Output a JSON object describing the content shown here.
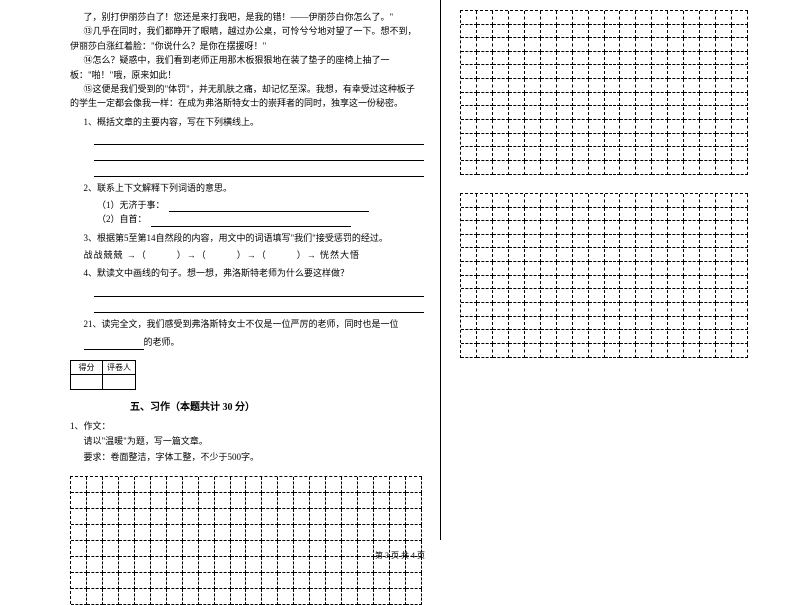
{
  "passage": {
    "p1": "了，别打伊丽莎白了！您还是来打我吧，是我的错！——伊丽莎白你怎么了。\"",
    "p2": "⑬几乎在同时，我们都睁开了眼睛，越过办公桌，可怜兮兮地对望了一下。想不到，伊丽莎白涨红着脸：\"你说什么？是你在摆援呀！\"",
    "p3": "⑭怎么？疑惑中，我们看到老师正用那木板狠狠地在装了垫子的座椅上抽了一板：\"啪！\"哦，原来如此！",
    "p4": "⑮这便是我们受到的\"体罚\"，并无肌肤之痛，却记忆至深。我想，有幸受过这种板子的学生一定都会像我一样：在成为弗洛斯特女士的崇拜者的同时，独享这一份秘密。"
  },
  "questions": {
    "q1": "1、概括文章的主要内容，写在下列横线上。",
    "q2": "2、联系上下文解释下列词语的意思。",
    "q2a": "（1）无济于事：",
    "q2b": "（2）自首：",
    "q3": "3、根据第5至第14自然段的内容，用文中的词语填写\"我们\"接受惩罚的经过。",
    "q3line": "战战兢兢 →（　　　）→（　　　）→（　　　）→ 恍然大悟",
    "q4": "4、默读文中画线的句子。想一想，弗洛斯特老师为什么要这样做？",
    "q21": "21、读完全文，我们感受到弗洛斯特女士不仅是一位严厉的老师，同时也是一位",
    "q21b": "的老师。"
  },
  "score": {
    "label1": "得分",
    "label2": "评卷人"
  },
  "section5": {
    "title": "五、习作（本题共计 30 分）",
    "item": "1、作文：",
    "req1": "请以\"温暖\"为题，写一篇文章。",
    "req2": "要求：卷面整洁，字体工整，不少于500字。"
  },
  "footer": "第 3 页 共 4 页",
  "grid": {
    "small_cols": 22,
    "small_rows": 8,
    "right_cols": 18,
    "right_rows": 12,
    "border_color": "#000000",
    "border_style": "dashed"
  }
}
